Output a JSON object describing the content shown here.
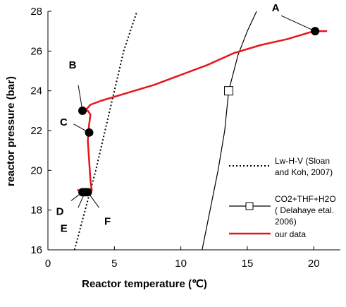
{
  "chart_data": {
    "type": "line",
    "xlabel": "Reactor temperature (℃)",
    "ylabel": "reactor pressure (bar)",
    "xlim": [
      0,
      22
    ],
    "ylim": [
      16,
      28
    ],
    "xticks": [
      0,
      5,
      10,
      15,
      20
    ],
    "yticks": [
      16,
      18,
      20,
      22,
      24,
      26,
      28
    ],
    "grid": false,
    "legend_position": "right",
    "series": [
      {
        "name": "Lw-H-V (Sloan and Koh, 2007)",
        "style": "dotted",
        "color": "#000000",
        "x": [
          2.0,
          2.8,
          3.6,
          4.3,
          5.0,
          5.7,
          6.7
        ],
        "y": [
          16.0,
          18.0,
          20.0,
          22.0,
          24.0,
          26.0,
          28.0
        ]
      },
      {
        "name": "CO2+THF+H2O ( Delahaye etal. 2006)",
        "style": "solid",
        "color": "#000000",
        "marker": "open-square",
        "marker_points": [
          [
            13.6,
            24.0
          ]
        ],
        "x": [
          11.6,
          12.2,
          12.8,
          13.3,
          13.6,
          14.3,
          15.0,
          15.7
        ],
        "y": [
          16.0,
          18.0,
          20.0,
          22.0,
          24.0,
          25.8,
          27.0,
          28.0
        ]
      },
      {
        "name": "our data",
        "style": "solid",
        "color": "#e8141b",
        "x": [
          2.2,
          2.6,
          3.0,
          3.3,
          3.2,
          3.1,
          3.0,
          3.1,
          3.2,
          3.0,
          2.8,
          3.2,
          4.0,
          5.5,
          8.0,
          10.0,
          12.0,
          14.0,
          16.0,
          18.0,
          19.0,
          20.0,
          21.0
        ],
        "y": [
          19.0,
          19.0,
          19.0,
          19.0,
          19.5,
          20.5,
          21.5,
          22.3,
          22.8,
          23.0,
          23.0,
          23.3,
          23.5,
          23.8,
          24.3,
          24.8,
          25.3,
          25.9,
          26.3,
          26.6,
          26.8,
          27.0,
          27.0
        ]
      }
    ],
    "annotations": [
      {
        "label": "A",
        "x": 20.1,
        "y": 27.0
      },
      {
        "label": "B",
        "x": 2.6,
        "y": 23.0
      },
      {
        "label": "C",
        "x": 3.1,
        "y": 21.9
      },
      {
        "label": "D",
        "x": 2.6,
        "y": 18.9
      },
      {
        "label": "E",
        "x": 2.8,
        "y": 18.9
      },
      {
        "label": "F",
        "x": 3.0,
        "y": 18.9
      }
    ],
    "legend": [
      {
        "text": "Lw-H-V (Sloan and Koh, 2007)",
        "lines": [
          "Lw-H-V (Sloan",
          "and Koh, 2007)"
        ]
      },
      {
        "text": "CO2+THF+H2O ( Delahaye etal. 2006)",
        "lines": [
          "CO2+THF+H2O",
          "( Delahaye etal.",
          "2006)"
        ]
      },
      {
        "text": "our data",
        "lines": [
          "our data"
        ]
      }
    ]
  }
}
